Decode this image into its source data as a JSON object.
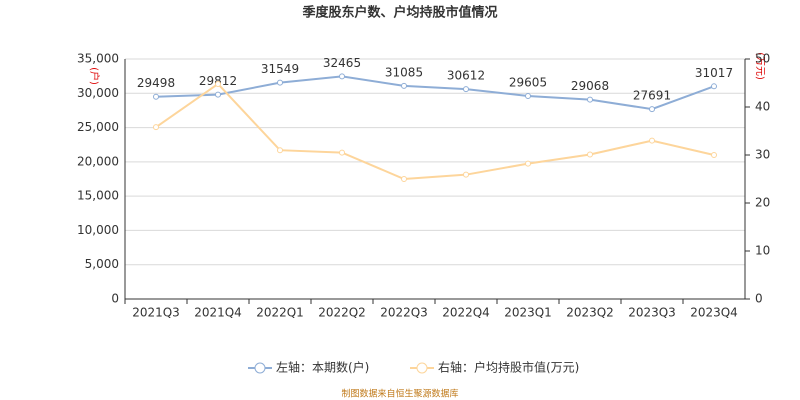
{
  "chart_data": {
    "type": "line",
    "title": "季度股东户数、户均持股市值情况",
    "y_label": "(户)",
    "y2_label": "(万元)",
    "source": "制图数据来自恒生聚源数据库",
    "categories": [
      "2021Q3",
      "2021Q4",
      "2022Q1",
      "2022Q2",
      "2022Q3",
      "2022Q4",
      "2023Q1",
      "2023Q2",
      "2023Q3",
      "2023Q4"
    ],
    "series": [
      {
        "name": "左轴：本期数(户)",
        "color": "#8eadd6",
        "values": [
          29498,
          29812,
          31549,
          32465,
          31085,
          30612,
          29605,
          29068,
          27691,
          31017
        ],
        "show_labels": true
      },
      {
        "name": "右轴：户均持股市值(万元)",
        "color": "#fdd59b",
        "axis": "y2",
        "values": [
          35.8,
          44.8,
          31.0,
          30.5,
          25.0,
          25.9,
          28.2,
          30.1,
          33.0,
          30.0
        ]
      }
    ],
    "ylim": [
      0,
      35000
    ],
    "yticks": [
      0,
      {
        "value": 5000,
        "label": "5,000"
      },
      {
        "value": 10000,
        "label": "10,000"
      },
      {
        "value": 15000,
        "label": "15,000"
      },
      {
        "value": 20000,
        "label": "20,000"
      },
      {
        "value": 25000,
        "label": "25,000"
      },
      {
        "value": 30000,
        "label": "30,000"
      },
      {
        "value": 35000,
        "label": "35,000"
      }
    ],
    "y2lim": [
      0,
      50
    ],
    "y2ticks": [
      0,
      10,
      20,
      30,
      40,
      50
    ],
    "grid": true
  }
}
